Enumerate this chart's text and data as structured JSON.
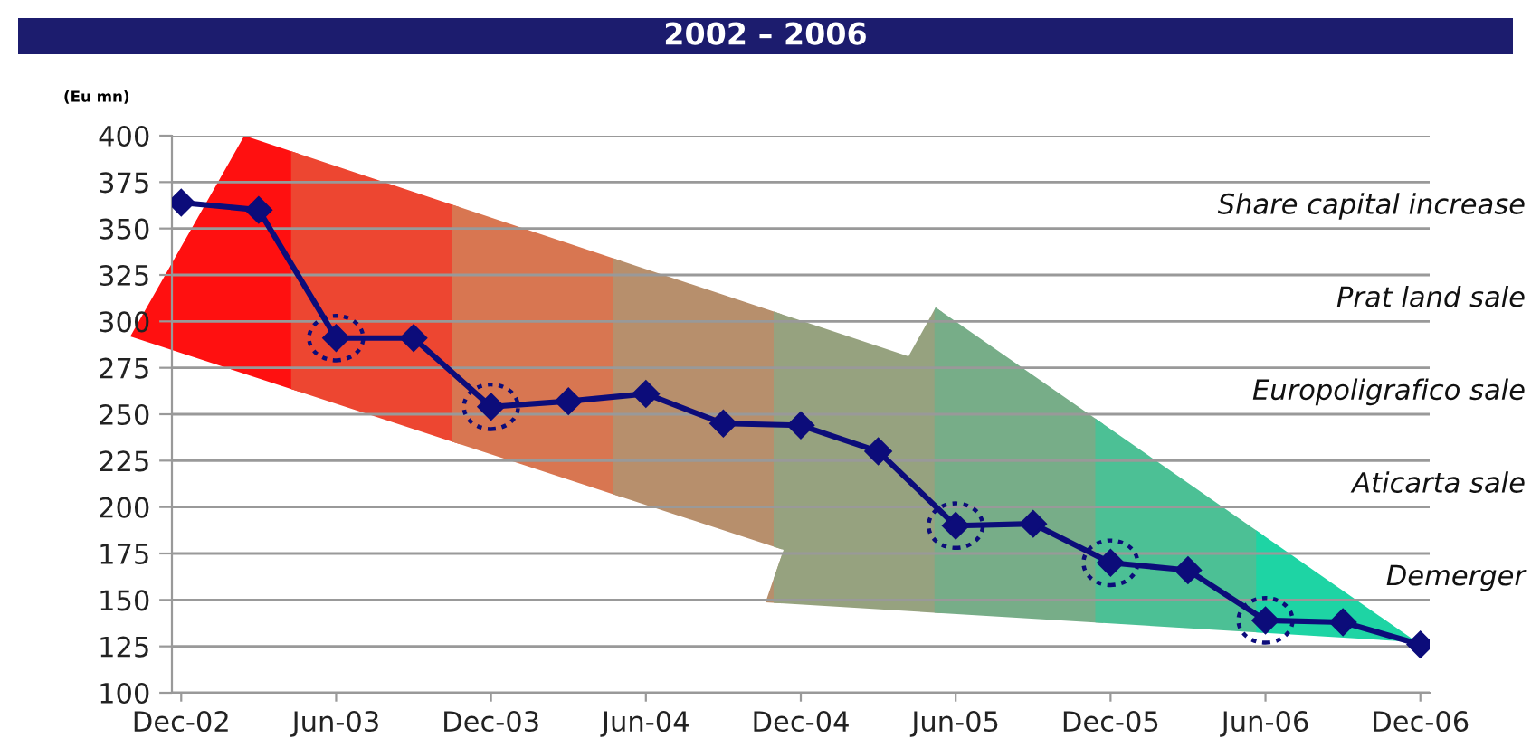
{
  "chart_data": {
    "type": "line",
    "title": "2002 – 2006",
    "ylabel": "(Eu mn)",
    "categories": [
      "Dec-02",
      null,
      "Jun-03",
      null,
      "Dec-03",
      null,
      "Jun-04",
      null,
      "Dec-04",
      null,
      "Jun-05",
      null,
      "Dec-05",
      null,
      "Jun-06",
      null,
      "Dec-06"
    ],
    "series": [
      {
        "color": "#0c0c7a",
        "values": [
          364,
          360,
          291,
          291,
          254,
          257,
          261,
          245,
          244,
          230,
          190,
          191,
          170,
          166,
          139,
          138,
          126
        ]
      }
    ],
    "ylim": [
      100,
      400
    ],
    "yticks": [
      100,
      125,
      150,
      175,
      200,
      225,
      250,
      275,
      300,
      325,
      350,
      375,
      400
    ],
    "grid": "y",
    "marker": "diamond",
    "line_style": "solid",
    "annotations": [
      "Share capital increase",
      "Prat land sale",
      "Europoligrafico sale",
      "Aticarta sale",
      "Demerger"
    ]
  }
}
